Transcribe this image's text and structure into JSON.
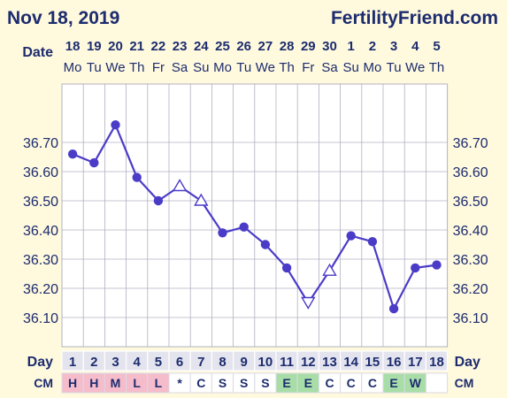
{
  "header": {
    "date": "Nov 18, 2019",
    "site": "FertilityFriend.com"
  },
  "rows": {
    "date_label": "Date",
    "day_label": "Day",
    "cm_label": "CM"
  },
  "colors": {
    "background": "#FFF9DE",
    "plot_background": "#FFFFFF",
    "grid": "#B0B0C0",
    "line": "#4B3CC8",
    "text": "#1c2c6e",
    "cm_H": "#F5BCCB",
    "cm_M": "#F5BCCB",
    "cm_L": "#F5BCCB",
    "cm_E": "#A8DDA8",
    "cm_W": "#A8DDA8",
    "cm_other": "#FFFFFF"
  },
  "chart_data": {
    "type": "line",
    "ylim": [
      36.0,
      36.9
    ],
    "yticks": [
      "36.10",
      "36.20",
      "36.30",
      "36.40",
      "36.50",
      "36.60",
      "36.70"
    ],
    "dates": [
      "18",
      "19",
      "20",
      "21",
      "22",
      "23",
      "24",
      "25",
      "26",
      "27",
      "28",
      "29",
      "30",
      "1",
      "2",
      "3",
      "4",
      "5"
    ],
    "weekdays": [
      "Mo",
      "Tu",
      "We",
      "Th",
      "Fr",
      "Sa",
      "Su",
      "Mo",
      "Tu",
      "We",
      "Th",
      "Fr",
      "Sa",
      "Su",
      "Mo",
      "Tu",
      "We",
      "Th"
    ],
    "cycle_days": [
      "1",
      "2",
      "3",
      "4",
      "5",
      "6",
      "7",
      "8",
      "9",
      "10",
      "11",
      "12",
      "13",
      "14",
      "15",
      "16",
      "17",
      "18"
    ],
    "temperatures": [
      36.66,
      36.63,
      36.76,
      36.58,
      36.5,
      36.55,
      36.5,
      36.39,
      36.41,
      36.35,
      36.27,
      36.15,
      36.26,
      36.38,
      36.36,
      36.13,
      36.27,
      36.28
    ],
    "markers": [
      "filled",
      "filled",
      "filled",
      "filled",
      "filled",
      "open-triangle",
      "open-triangle",
      "filled",
      "filled",
      "filled",
      "filled",
      "open-triangle-down",
      "open-triangle",
      "filled",
      "filled",
      "filled",
      "filled",
      "filled"
    ],
    "cervical_mucus": [
      "H",
      "H",
      "M",
      "L",
      "L",
      "*",
      "C",
      "S",
      "S",
      "S",
      "E",
      "E",
      "C",
      "C",
      "C",
      "E",
      "W",
      ""
    ]
  }
}
